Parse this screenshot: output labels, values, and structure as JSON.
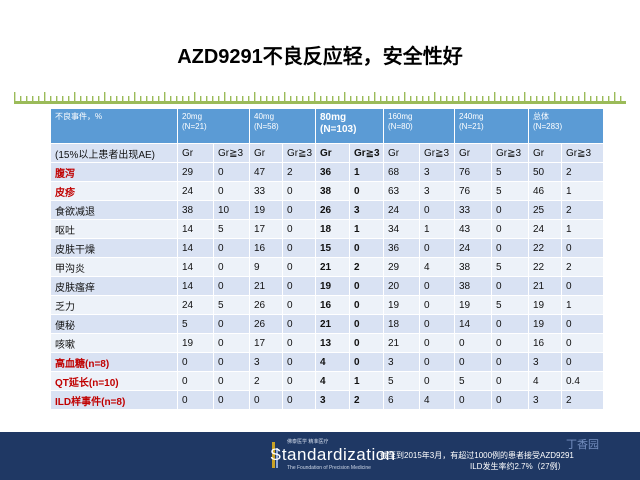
{
  "slide": {
    "title": "AZD9291不良反应轻，安全性好"
  },
  "table": {
    "header_first": "不良事件，%",
    "header_groups": [
      {
        "dose": "20mg",
        "n": "(N=21)"
      },
      {
        "dose": "40mg",
        "n": "(N=58)"
      },
      {
        "dose": "80mg",
        "n": "(N=103)"
      },
      {
        "dose": "160mg",
        "n": "(N=80)"
      },
      {
        "dose": "240mg",
        "n": "(N=21)"
      },
      {
        "dose": "总体",
        "n": "(N=283)"
      }
    ],
    "subheader_first": "(15%以上患者出现AE)",
    "subheader_cols": [
      "Gr",
      "Gr≧3",
      "Gr",
      "Gr≧3",
      "Gr",
      "Gr≧3",
      "Gr",
      "Gr≧3",
      "Gr",
      "Gr≧3",
      "Gr",
      "Gr≧3"
    ],
    "rows": [
      {
        "name": "腹泻",
        "red": true,
        "values": [
          "29",
          "0",
          "47",
          "2",
          "36",
          "1",
          "68",
          "3",
          "76",
          "5",
          "50",
          "2"
        ]
      },
      {
        "name": "皮疹",
        "red": true,
        "values": [
          "24",
          "0",
          "33",
          "0",
          "38",
          "0",
          "63",
          "3",
          "76",
          "5",
          "46",
          "1"
        ]
      },
      {
        "name": "食欲减退",
        "red": false,
        "values": [
          "38",
          "10",
          "19",
          "0",
          "26",
          "3",
          "24",
          "0",
          "33",
          "0",
          "25",
          "2"
        ]
      },
      {
        "name": "呕吐",
        "red": false,
        "values": [
          "14",
          "5",
          "17",
          "0",
          "18",
          "1",
          "34",
          "1",
          "43",
          "0",
          "24",
          "1"
        ]
      },
      {
        "name": "皮肤干燥",
        "red": false,
        "values": [
          "14",
          "0",
          "16",
          "0",
          "15",
          "0",
          "36",
          "0",
          "24",
          "0",
          "22",
          "0"
        ]
      },
      {
        "name": "甲沟炎",
        "red": false,
        "values": [
          "14",
          "0",
          "9",
          "0",
          "21",
          "2",
          "29",
          "4",
          "38",
          "5",
          "22",
          "2"
        ]
      },
      {
        "name": "皮肤瘙痒",
        "red": false,
        "values": [
          "14",
          "0",
          "21",
          "0",
          "19",
          "0",
          "20",
          "0",
          "38",
          "0",
          "21",
          "0"
        ]
      },
      {
        "name": "乏力",
        "red": false,
        "values": [
          "24",
          "5",
          "26",
          "0",
          "16",
          "0",
          "19",
          "0",
          "19",
          "5",
          "19",
          "1"
        ]
      },
      {
        "name": "便秘",
        "red": false,
        "values": [
          "5",
          "0",
          "26",
          "0",
          "21",
          "0",
          "18",
          "0",
          "14",
          "0",
          "19",
          "0"
        ]
      },
      {
        "name": "咳嗽",
        "red": false,
        "values": [
          "19",
          "0",
          "17",
          "0",
          "13",
          "0",
          "21",
          "0",
          "0",
          "0",
          "16",
          "0"
        ]
      },
      {
        "name": "高血糖(n=8)",
        "red": true,
        "values": [
          "0",
          "0",
          "3",
          "0",
          "4",
          "0",
          "3",
          "0",
          "0",
          "0",
          "3",
          "0"
        ]
      },
      {
        "name": "QT延长(n=10)",
        "red": true,
        "values": [
          "0",
          "0",
          "2",
          "0",
          "4",
          "1",
          "5",
          "0",
          "5",
          "0",
          "4",
          "0.4"
        ]
      },
      {
        "name": "ILD样事件(n=8)",
        "red": true,
        "values": [
          "0",
          "0",
          "0",
          "0",
          "3",
          "2",
          "6",
          "4",
          "0",
          "0",
          "3",
          "2"
        ]
      }
    ]
  },
  "footer": {
    "logo_small": "佛泰医学 精准医疗",
    "logo_text": "Standardization",
    "logo_sub": "The Foundation of Precision Medicine",
    "note_line1": "截至到2015年3月，有超过1000例的患者接受AZD9291",
    "note_line2": "ILD发生率约2.7%（27例）",
    "watermark": "丁香园"
  },
  "colors": {
    "header": "#5b9bd5",
    "row_dark": "#d9e2f3",
    "row_light": "#edf2f9",
    "accent_red": "#c00000",
    "footer": "#1f3864",
    "ruler": "#9bbb59"
  }
}
